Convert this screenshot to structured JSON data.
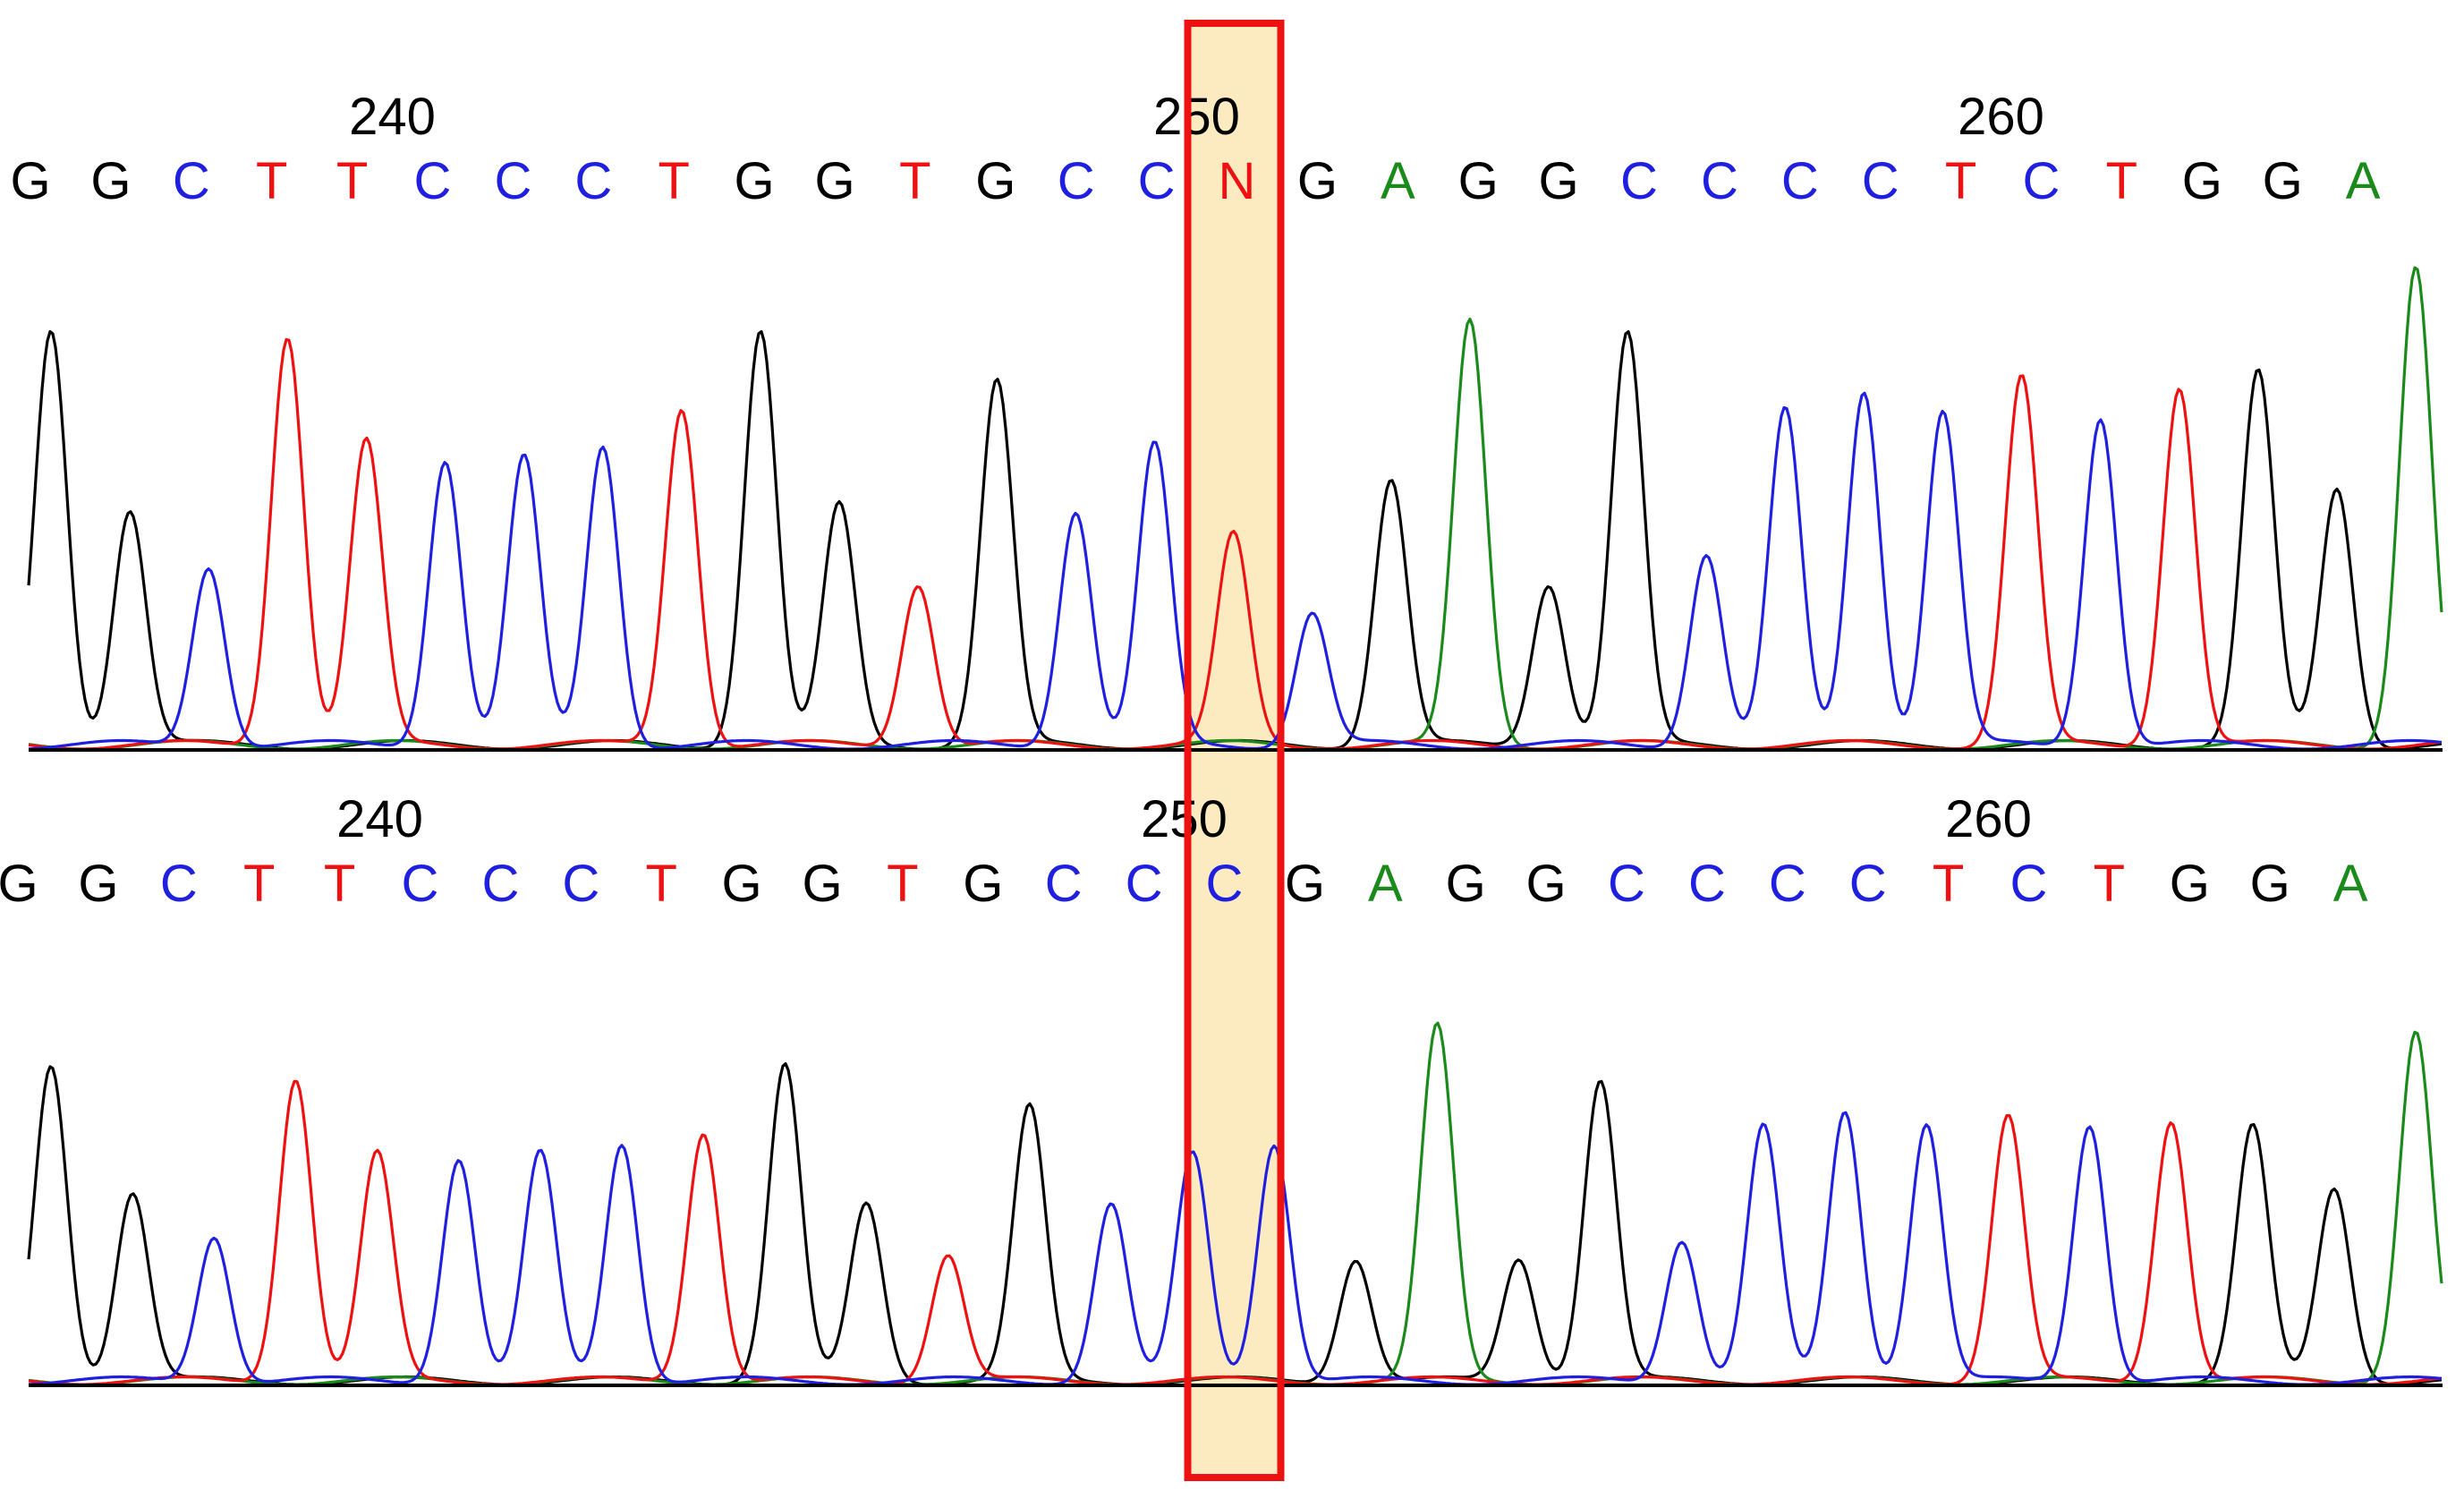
{
  "colors": {
    "A": "#1a8a1a",
    "C": "#1f1fe0",
    "G": "#000000",
    "T": "#ee1111",
    "N": "#ee1111",
    "highlight_fill": "#fbe8b6",
    "highlight_stroke": "#ee1111",
    "baseline": "#000000"
  },
  "chart_data": [
    {
      "type": "line",
      "name": "chromatogram-top",
      "position_ticks": [
        {
          "label": "240",
          "index": 4
        },
        {
          "label": "250",
          "index": 14
        },
        {
          "label": "260",
          "index": 24
        }
      ],
      "bases": [
        "G",
        "G",
        "C",
        "T",
        "T",
        "C",
        "C",
        "C",
        "T",
        "G",
        "G",
        "T",
        "G",
        "C",
        "C",
        "N",
        "G",
        "A",
        "G",
        "G",
        "C",
        "C",
        "C",
        "C",
        "T",
        "C",
        "T",
        "G",
        "G",
        "A"
      ],
      "peaks": [
        {
          "base": "G",
          "height": 0.97
        },
        {
          "base": "G",
          "height": 0.55
        },
        {
          "base": "C",
          "height": 0.42
        },
        {
          "base": "T",
          "height": 0.96
        },
        {
          "base": "T",
          "height": 0.71
        },
        {
          "base": "C",
          "height": 0.67
        },
        {
          "base": "C",
          "height": 0.67
        },
        {
          "base": "C",
          "height": 0.7
        },
        {
          "base": "T",
          "height": 0.79
        },
        {
          "base": "G",
          "height": 0.97
        },
        {
          "base": "G",
          "height": 0.56
        },
        {
          "base": "T",
          "height": 0.38
        },
        {
          "base": "G",
          "height": 0.85
        },
        {
          "base": "C",
          "height": 0.55
        },
        {
          "base": "C",
          "height": 0.7
        },
        {
          "base": "T",
          "height": 0.49
        },
        {
          "base": "C",
          "height": 0.31
        },
        {
          "base": "G",
          "height": 0.62
        },
        {
          "base": "A",
          "height": 0.99
        },
        {
          "base": "G",
          "height": 0.38
        },
        {
          "base": "G",
          "height": 0.96
        },
        {
          "base": "C",
          "height": 0.45
        },
        {
          "base": "C",
          "height": 0.78
        },
        {
          "base": "C",
          "height": 0.83
        },
        {
          "base": "C",
          "height": 0.78
        },
        {
          "base": "T",
          "height": 0.86
        },
        {
          "base": "C",
          "height": 0.77
        },
        {
          "base": "T",
          "height": 0.84
        },
        {
          "base": "G",
          "height": 0.87
        },
        {
          "base": "G",
          "height": 0.6
        },
        {
          "base": "A",
          "height": 1.12
        }
      ]
    },
    {
      "type": "line",
      "name": "chromatogram-bottom",
      "position_ticks": [
        {
          "label": "240",
          "index": 4
        },
        {
          "label": "250",
          "index": 14
        },
        {
          "label": "260",
          "index": 24
        }
      ],
      "bases": [
        "G",
        "G",
        "C",
        "T",
        "T",
        "C",
        "C",
        "C",
        "T",
        "G",
        "G",
        "T",
        "G",
        "C",
        "C",
        "C",
        "G",
        "A",
        "G",
        "G",
        "C",
        "C",
        "C",
        "C",
        "T",
        "C",
        "T",
        "G",
        "G",
        "A"
      ],
      "peaks": [
        {
          "base": "G",
          "height": 0.82
        },
        {
          "base": "G",
          "height": 0.49
        },
        {
          "base": "C",
          "height": 0.38
        },
        {
          "base": "T",
          "height": 0.79
        },
        {
          "base": "T",
          "height": 0.59
        },
        {
          "base": "C",
          "height": 0.58
        },
        {
          "base": "C",
          "height": 0.59
        },
        {
          "base": "C",
          "height": 0.62
        },
        {
          "base": "T",
          "height": 0.65
        },
        {
          "base": "G",
          "height": 0.82
        },
        {
          "base": "G",
          "height": 0.46
        },
        {
          "base": "T",
          "height": 0.33
        },
        {
          "base": "G",
          "height": 0.71
        },
        {
          "base": "C",
          "height": 0.46
        },
        {
          "base": "C",
          "height": 0.59
        },
        {
          "base": "C",
          "height": 0.62
        },
        {
          "base": "G",
          "height": 0.32
        },
        {
          "base": "A",
          "height": 0.92
        },
        {
          "base": "G",
          "height": 0.32
        },
        {
          "base": "G",
          "height": 0.78
        },
        {
          "base": "C",
          "height": 0.37
        },
        {
          "base": "C",
          "height": 0.66
        },
        {
          "base": "C",
          "height": 0.7
        },
        {
          "base": "C",
          "height": 0.67
        },
        {
          "base": "T",
          "height": 0.69
        },
        {
          "base": "C",
          "height": 0.67
        },
        {
          "base": "T",
          "height": 0.68
        },
        {
          "base": "G",
          "height": 0.66
        },
        {
          "base": "G",
          "height": 0.5
        },
        {
          "base": "A",
          "height": 0.91
        }
      ]
    }
  ]
}
